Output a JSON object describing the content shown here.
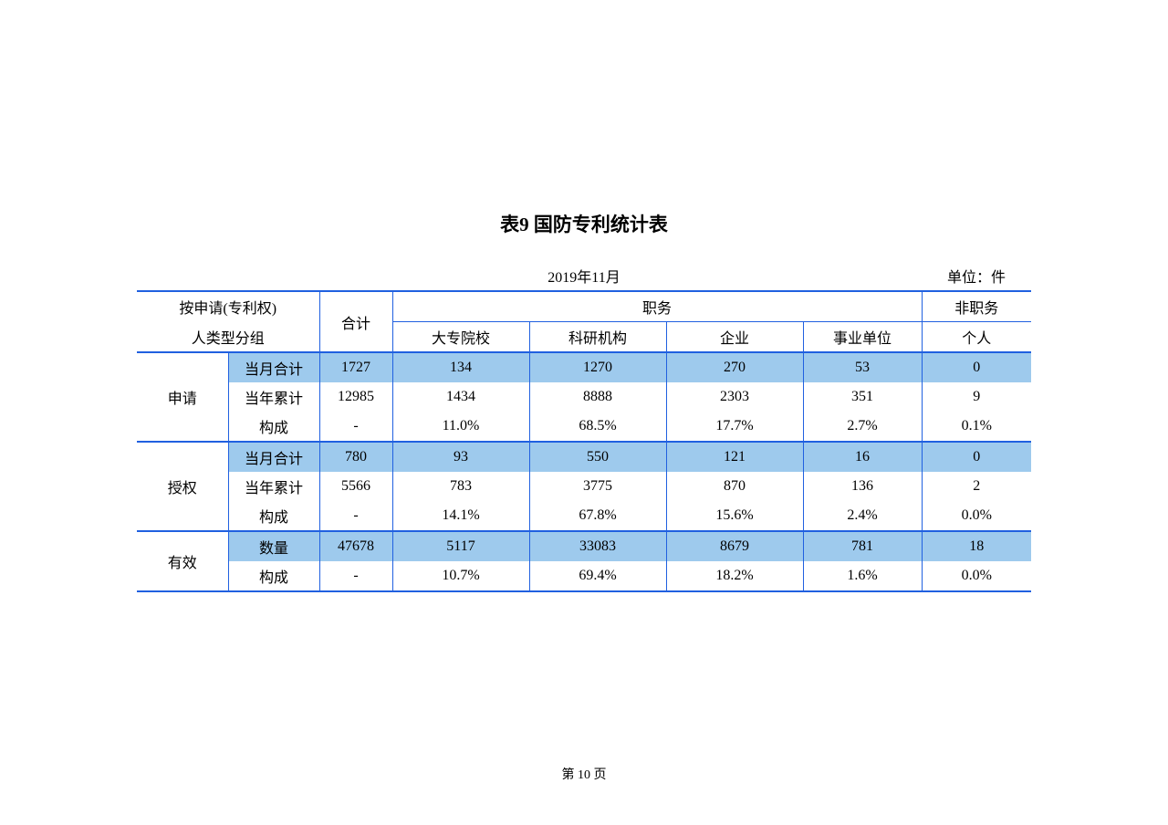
{
  "title": "表9 国防专利统计表",
  "date": "2019年11月",
  "unit_label": "单位：件",
  "header": {
    "group_line1": "按申请(专利权)",
    "group_line2": "人类型分组",
    "total": "合计",
    "duty": "职务",
    "nonduty": "非职务",
    "college": "大专院校",
    "research": "科研机构",
    "enterprise": "企业",
    "institution": "事业单位",
    "individual": "个人"
  },
  "sections": {
    "apply": {
      "label": "申请",
      "month_label": "当月合计",
      "year_label": "当年累计",
      "compose_label": "构成",
      "month": [
        "1727",
        "134",
        "1270",
        "270",
        "53",
        "0"
      ],
      "year": [
        "12985",
        "1434",
        "8888",
        "2303",
        "351",
        "9"
      ],
      "compose": [
        "-",
        "11.0%",
        "68.5%",
        "17.7%",
        "2.7%",
        "0.1%"
      ]
    },
    "grant": {
      "label": "授权",
      "month_label": "当月合计",
      "year_label": "当年累计",
      "compose_label": "构成",
      "month": [
        "780",
        "93",
        "550",
        "121",
        "16",
        "0"
      ],
      "year": [
        "5566",
        "783",
        "3775",
        "870",
        "136",
        "2"
      ],
      "compose": [
        "-",
        "14.1%",
        "67.8%",
        "15.6%",
        "2.4%",
        "0.0%"
      ]
    },
    "valid": {
      "label": "有效",
      "count_label": "数量",
      "compose_label": "构成",
      "count": [
        "47678",
        "5117",
        "33083",
        "8679",
        "781",
        "18"
      ],
      "compose": [
        "-",
        "10.7%",
        "69.4%",
        "18.2%",
        "1.6%",
        "0.0%"
      ]
    }
  },
  "footer": "第 10 页",
  "style": {
    "border_color": "#2060e0",
    "highlight_color": "#9ecaed",
    "background_color": "#ffffff",
    "text_color": "#000000",
    "title_fontsize": 21,
    "body_fontsize": 16,
    "footer_fontsize": 14
  }
}
